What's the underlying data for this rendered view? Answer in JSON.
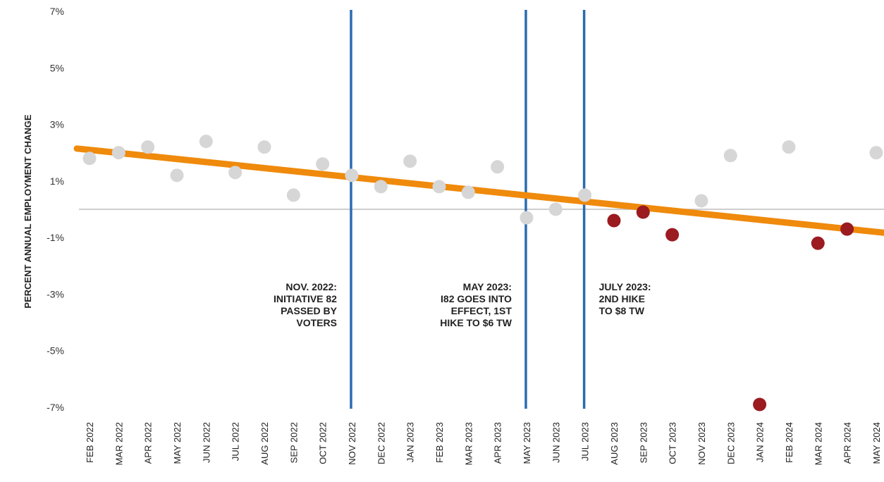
{
  "chart_data": {
    "type": "scatter",
    "title": "",
    "ylabel": "PERCENT ANNUAL EMPLOYMENT CHANGE",
    "xlabel": "",
    "ylim": [
      -7,
      7
    ],
    "y_ticks": [
      7,
      5,
      3,
      1,
      -1,
      -3,
      -5,
      -7
    ],
    "y_tick_labels": [
      "7%",
      "5%",
      "3%",
      "1%",
      "-1%",
      "-3%",
      "-5%",
      "-7%"
    ],
    "categories": [
      "FEB 2022",
      "MAR 2022",
      "APR 2022",
      "MAY 2022",
      "JUN 2022",
      "JUL 2022",
      "AUG 2022",
      "SEP 2022",
      "OCT 2022",
      "NOV 2022",
      "DEC 2022",
      "JAN 2023",
      "FEB 2023",
      "MAR 2023",
      "APR 2023",
      "MAY 2023",
      "JUN 2023",
      "JUL 2023",
      "AUG 2023",
      "SEP 2023",
      "OCT 2023",
      "NOV 2023",
      "DEC 2023",
      "JAN 2024",
      "FEB 2024",
      "MAR 2024",
      "APR 2024",
      "MAY 2024"
    ],
    "values": [
      1.8,
      2.0,
      2.2,
      1.2,
      2.4,
      1.3,
      2.2,
      0.5,
      1.6,
      1.2,
      0.8,
      1.7,
      0.8,
      0.6,
      1.5,
      -0.3,
      0.0,
      0.5,
      -0.4,
      -0.1,
      -0.9,
      0.3,
      1.9,
      -6.9,
      2.2,
      -1.2,
      -0.7,
      2.0
    ],
    "highlighted": [
      false,
      false,
      false,
      false,
      false,
      false,
      false,
      false,
      false,
      false,
      false,
      false,
      false,
      false,
      false,
      false,
      false,
      false,
      true,
      true,
      true,
      false,
      false,
      true,
      false,
      true,
      true,
      false
    ],
    "trendline": {
      "start": 2.1,
      "end": -0.8
    },
    "reference_line_y": 0,
    "event_lines": [
      {
        "at": "NOV 2022",
        "lines": [
          "NOV. 2022:",
          "INITIATIVE 82",
          "PASSED BY",
          "VOTERS"
        ],
        "label_side": "left"
      },
      {
        "at": "MAY 2023",
        "lines": [
          "MAY 2023:",
          "I82 GOES INTO",
          "EFFECT, 1ST",
          "HIKE TO $6 TW"
        ],
        "label_side": "left"
      },
      {
        "at": "JUL 2023",
        "lines": [
          "JULY 2023:",
          "2ND HIKE",
          "TO $8 TW"
        ],
        "label_side": "right"
      }
    ],
    "colors": {
      "point": "#d6d6d6",
      "highlight_point": "#9b1b20",
      "trend": "#ef8a0c",
      "event_line": "#2b6cb0",
      "zero_line": "#bdbdbd"
    },
    "grid": false,
    "legend": "none"
  }
}
